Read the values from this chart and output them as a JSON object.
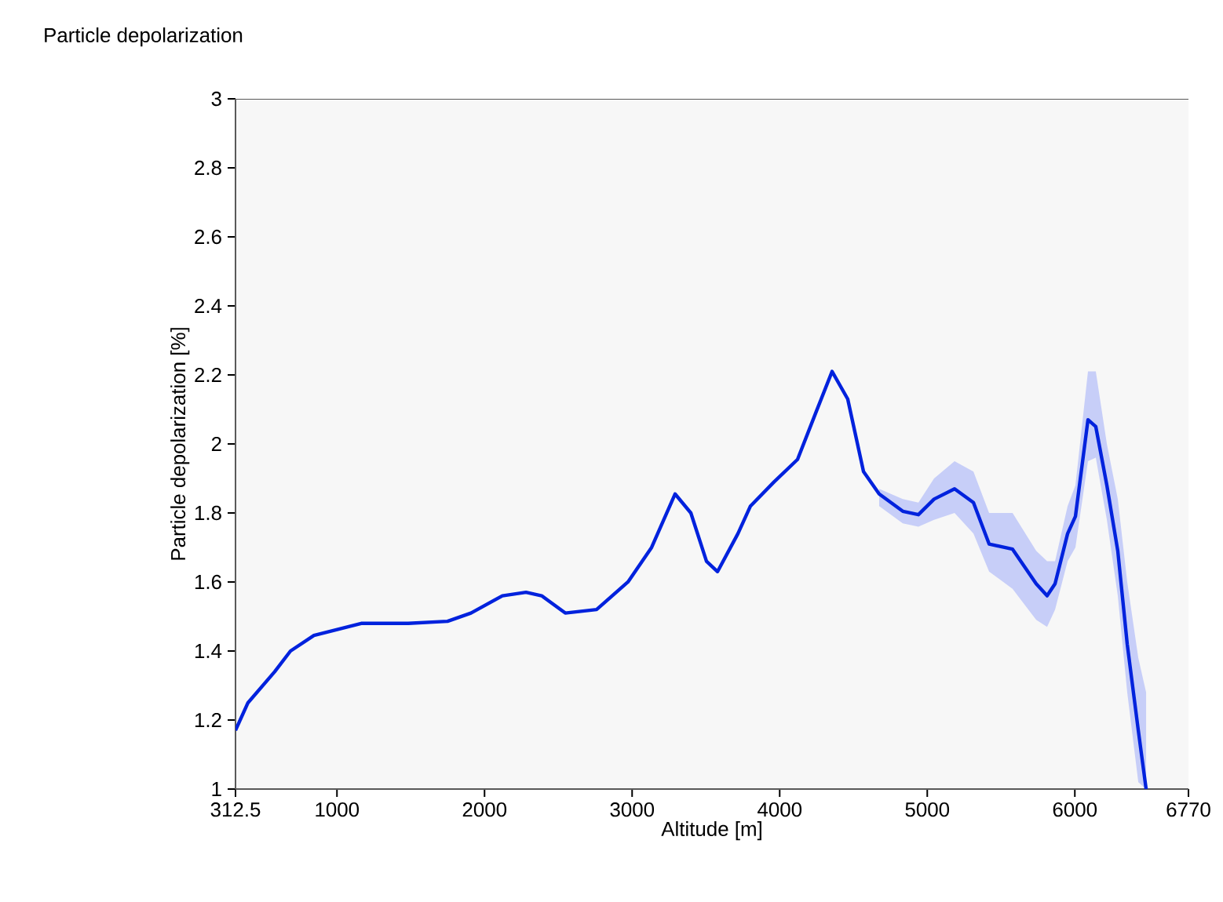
{
  "chart_data": {
    "type": "line",
    "title": "Particle depolarization",
    "xlabel": "Altitude [m]",
    "ylabel": "Particle depolarization [%]",
    "xlim": [
      312.5,
      6770
    ],
    "ylim": [
      1,
      3
    ],
    "xticks": [
      312.5,
      1000,
      2000,
      3000,
      4000,
      5000,
      6000,
      6770
    ],
    "yticks": [
      1,
      1.2,
      1.4,
      1.6,
      1.8,
      2,
      2.2,
      2.4,
      2.6,
      2.8,
      3
    ],
    "grid": false,
    "marker": "none",
    "line_style": "solid",
    "series": [
      {
        "color": "#0022dd",
        "x": [
          312.5,
          397,
          578,
          685,
          844,
          1164,
          1483,
          1749,
          1908,
          2121,
          2281,
          2387,
          2547,
          2759,
          2972,
          3132,
          3291,
          3398,
          3504,
          3579,
          3717,
          3802,
          3962,
          4121,
          4249,
          4355,
          4461,
          4568,
          4674,
          4834,
          4940,
          5046,
          5185,
          5313,
          5419,
          5578,
          5738,
          5812,
          5866,
          5951,
          6004,
          6089,
          6142,
          6217,
          6291,
          6355,
          6430,
          6483
        ],
        "values": [
          1.17,
          1.25,
          1.34,
          1.4,
          1.445,
          1.48,
          1.48,
          1.486,
          1.51,
          1.56,
          1.57,
          1.56,
          1.51,
          1.52,
          1.6,
          1.7,
          1.855,
          1.8,
          1.66,
          1.63,
          1.74,
          1.82,
          1.89,
          1.955,
          2.095,
          2.21,
          2.13,
          1.92,
          1.855,
          1.805,
          1.795,
          1.84,
          1.87,
          1.83,
          1.71,
          1.695,
          1.595,
          1.56,
          1.595,
          1.74,
          1.79,
          2.07,
          2.05,
          1.88,
          1.69,
          1.42,
          1.17,
          1.0
        ],
        "lower": [
          null,
          null,
          null,
          null,
          null,
          null,
          null,
          null,
          null,
          null,
          null,
          null,
          null,
          null,
          null,
          null,
          null,
          null,
          null,
          null,
          null,
          null,
          null,
          null,
          null,
          null,
          null,
          null,
          1.82,
          1.77,
          1.76,
          1.78,
          1.8,
          1.74,
          1.63,
          1.58,
          1.49,
          1.47,
          1.52,
          1.66,
          1.7,
          1.95,
          1.96,
          1.78,
          1.56,
          1.28,
          1.02,
          1.0
        ],
        "upper": [
          null,
          null,
          null,
          null,
          null,
          null,
          null,
          null,
          null,
          null,
          null,
          null,
          null,
          null,
          null,
          null,
          null,
          null,
          null,
          null,
          null,
          null,
          null,
          null,
          null,
          null,
          null,
          null,
          1.87,
          1.84,
          1.83,
          1.9,
          1.95,
          1.92,
          1.8,
          1.8,
          1.69,
          1.66,
          1.66,
          1.82,
          1.88,
          2.21,
          2.21,
          2.0,
          1.84,
          1.6,
          1.38,
          1.28
        ]
      }
    ]
  }
}
